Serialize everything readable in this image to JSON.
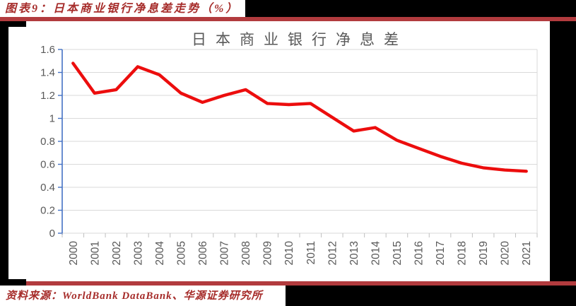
{
  "header": {
    "title": "图表9：日本商业银行净息差走势（%）"
  },
  "footer": {
    "source": "资料来源：WorldBank DataBank、华源证券研究所"
  },
  "colors": {
    "accent_rule": "#B23B3E",
    "heading_text": "#A62C2A",
    "line": "#EC0D0D",
    "axis_blue": "#4472C4",
    "grid": "#DADADA",
    "tick": "#BFBFBF",
    "tick_label": "#595959",
    "chart_title": "#595959"
  },
  "chart_data": {
    "type": "line",
    "title": "日本商业银行净息差",
    "categories": [
      "2000",
      "2001",
      "2002",
      "2003",
      "2004",
      "2005",
      "2006",
      "2007",
      "2008",
      "2009",
      "2010",
      "2011",
      "2012",
      "2013",
      "2014",
      "2015",
      "2016",
      "2017",
      "2018",
      "2019",
      "2020",
      "2021"
    ],
    "series": [
      {
        "name": "日本商业银行净息差",
        "values": [
          1.48,
          1.22,
          1.25,
          1.45,
          1.38,
          1.22,
          1.14,
          1.2,
          1.25,
          1.13,
          1.12,
          1.13,
          1.01,
          0.89,
          0.92,
          0.81,
          0.74,
          0.67,
          0.61,
          0.57,
          0.55,
          0.54
        ]
      }
    ],
    "xlabel": "",
    "ylabel": "",
    "ylim": [
      0,
      1.6
    ],
    "ytick_step": 0.2,
    "grid": "horizontal",
    "legend_position": "none",
    "x_tick_label_rotation": -90
  }
}
